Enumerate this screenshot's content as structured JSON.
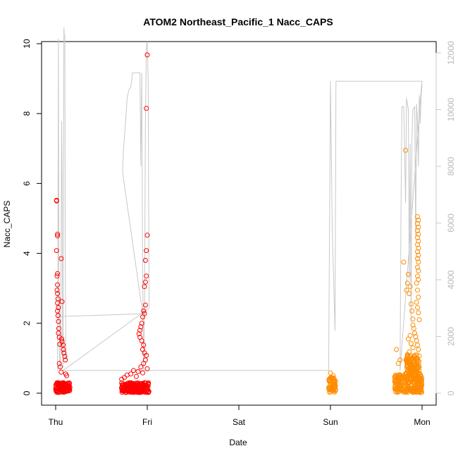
{
  "chart_data": {
    "type": "scatter",
    "title": "ATOM2 Northeast_Pacific_1 Nacc_CAPS",
    "xlabel": "Date",
    "ylabel": "Nacc_CAPS",
    "x_ticks": [
      "Thu",
      "Fri",
      "Sat",
      "Sun",
      "Mon"
    ],
    "x_range_days": [
      -0.05,
      4.05
    ],
    "y_left": {
      "range": [
        0,
        10
      ],
      "ticks": [
        "0",
        "2",
        "4",
        "6",
        "8",
        "10"
      ]
    },
    "y_right": {
      "range": [
        0,
        12000
      ],
      "ticks": [
        "0",
        "2000",
        "4000",
        "6000",
        "8000",
        "10000",
        "12000"
      ],
      "color": "#c8c8c8"
    },
    "grid": false,
    "legend": "none",
    "colors": {
      "series1": "#ff0000",
      "series2": "#ff8c00",
      "altitude": "#c8c8c8"
    },
    "series": [
      {
        "color": "#ff0000",
        "points": [
          [
            0.01,
            5.52
          ],
          [
            0.01,
            5.5
          ],
          [
            0.02,
            4.55
          ],
          [
            0.02,
            4.5
          ],
          [
            0.01,
            4.08
          ],
          [
            0.02,
            3.42
          ],
          [
            0.015,
            3.35
          ],
          [
            0.02,
            3.1
          ],
          [
            0.015,
            2.95
          ],
          [
            0.02,
            2.85
          ],
          [
            0.025,
            2.7
          ],
          [
            0.02,
            2.58
          ],
          [
            0.03,
            2.45
          ],
          [
            0.02,
            2.35
          ],
          [
            0.025,
            2.22
          ],
          [
            0.03,
            2.05
          ],
          [
            0.035,
            1.85
          ],
          [
            0.03,
            1.72
          ],
          [
            0.04,
            1.6
          ],
          [
            0.045,
            1.4
          ],
          [
            0.06,
            3.85
          ],
          [
            0.065,
            1.55
          ],
          [
            0.07,
            1.48
          ],
          [
            0.08,
            1.38
          ],
          [
            0.085,
            1.25
          ],
          [
            0.09,
            1.15
          ],
          [
            0.1,
            1.05
          ],
          [
            0.07,
            2.62
          ],
          [
            0.105,
            0.95
          ],
          [
            0.11,
            0.55
          ],
          [
            0.12,
            0.5
          ],
          [
            0.04,
            0.85
          ],
          [
            0.05,
            0.75
          ],
          [
            0.06,
            0.6
          ],
          [
            1.0,
            9.68
          ],
          [
            0.99,
            8.15
          ],
          [
            1.0,
            4.52
          ],
          [
            0.99,
            4.08
          ],
          [
            0.98,
            3.8
          ],
          [
            0.99,
            3.35
          ],
          [
            0.98,
            3.18
          ],
          [
            0.97,
            3.05
          ],
          [
            0.98,
            2.52
          ],
          [
            0.96,
            2.35
          ],
          [
            0.97,
            2.28
          ],
          [
            0.95,
            2.18
          ],
          [
            0.94,
            2.0
          ],
          [
            0.93,
            1.9
          ],
          [
            0.92,
            1.8
          ],
          [
            0.91,
            1.7
          ],
          [
            0.92,
            1.6
          ],
          [
            0.94,
            1.5
          ],
          [
            0.96,
            1.38
          ],
          [
            0.95,
            1.25
          ],
          [
            0.97,
            1.15
          ],
          [
            0.99,
            1.08
          ],
          [
            0.98,
            0.95
          ],
          [
            0.96,
            0.85
          ],
          [
            0.93,
            0.75
          ],
          [
            0.85,
            0.65
          ],
          [
            0.82,
            0.55
          ],
          [
            0.78,
            0.52
          ],
          [
            0.75,
            0.45
          ],
          [
            0.72,
            0.4
          ],
          [
            0.88,
            0.48
          ],
          [
            0.9,
            0.62
          ],
          [
            1.0,
            0.7
          ],
          [
            0.95,
            0.58
          ]
        ],
        "dense_band": [
          {
            "x0": 0.0,
            "x1": 0.16,
            "y0": 0.02,
            "y1": 0.3
          },
          {
            "x0": 0.72,
            "x1": 1.02,
            "y0": 0.02,
            "y1": 0.3
          }
        ]
      },
      {
        "color": "#ff8c00",
        "points": [
          [
            3.0,
            0.58
          ],
          [
            3.01,
            0.45
          ],
          [
            3.02,
            0.4
          ],
          [
            3.0,
            0.35
          ],
          [
            3.03,
            0.5
          ],
          [
            3.72,
            1.25
          ],
          [
            3.74,
            0.85
          ],
          [
            3.76,
            0.95
          ],
          [
            3.8,
            3.75
          ],
          [
            3.82,
            6.95
          ],
          [
            3.83,
            2.95
          ],
          [
            3.84,
            3.15
          ],
          [
            3.85,
            3.4
          ],
          [
            3.86,
            2.85
          ],
          [
            3.87,
            3.05
          ],
          [
            3.88,
            2.55
          ],
          [
            3.89,
            2.35
          ],
          [
            3.9,
            2.12
          ],
          [
            3.9,
            1.95
          ],
          [
            3.91,
            1.85
          ],
          [
            3.92,
            1.72
          ],
          [
            3.93,
            1.62
          ],
          [
            3.94,
            1.5
          ],
          [
            3.95,
            1.38
          ],
          [
            3.96,
            1.25
          ],
          [
            3.88,
            1.42
          ],
          [
            3.9,
            1.3
          ],
          [
            3.84,
            1.1
          ],
          [
            3.86,
            1.18
          ],
          [
            3.92,
            1.05
          ],
          [
            3.94,
            1.0
          ],
          [
            3.85,
            1.55
          ],
          [
            3.87,
            1.65
          ],
          [
            3.95,
            5.05
          ],
          [
            3.96,
            4.95
          ],
          [
            3.95,
            4.85
          ],
          [
            3.96,
            4.75
          ],
          [
            3.95,
            4.65
          ],
          [
            3.96,
            4.55
          ],
          [
            3.95,
            4.45
          ],
          [
            3.96,
            4.35
          ],
          [
            3.95,
            4.25
          ],
          [
            3.96,
            4.15
          ],
          [
            3.95,
            4.05
          ],
          [
            3.96,
            3.95
          ],
          [
            3.95,
            3.85
          ],
          [
            3.96,
            3.75
          ],
          [
            3.95,
            3.6
          ],
          [
            3.96,
            3.5
          ],
          [
            3.95,
            3.35
          ],
          [
            3.96,
            3.25
          ],
          [
            3.94,
            3.15
          ],
          [
            3.95,
            2.95
          ],
          [
            3.96,
            2.75
          ],
          [
            3.94,
            2.6
          ],
          [
            3.95,
            2.45
          ],
          [
            3.96,
            2.3
          ],
          [
            3.97,
            2.1
          ]
        ],
        "dense_band": [
          {
            "x0": 2.98,
            "x1": 3.06,
            "y0": 0.02,
            "y1": 0.45
          },
          {
            "x0": 3.7,
            "x1": 4.0,
            "y0": 0.02,
            "y1": 0.55
          },
          {
            "x0": 3.82,
            "x1": 3.97,
            "y0": 0.55,
            "y1": 1.1
          }
        ]
      }
    ],
    "altitude_line": {
      "axis": "right",
      "color": "#c8c8c8",
      "points": [
        [
          0.02,
          800
        ],
        [
          0.025,
          6000
        ],
        [
          0.03,
          12500
        ],
        [
          0.035,
          4000
        ],
        [
          0.04,
          1500
        ],
        [
          0.05,
          800
        ],
        [
          0.055,
          2200
        ],
        [
          0.06,
          5500
        ],
        [
          0.065,
          9600
        ],
        [
          0.07,
          7800
        ],
        [
          0.075,
          1800
        ],
        [
          0.08,
          900
        ],
        [
          0.085,
          4800
        ],
        [
          0.09,
          12900
        ],
        [
          0.095,
          12600
        ],
        [
          0.1,
          12600
        ],
        [
          0.105,
          5000
        ],
        [
          0.11,
          1800
        ],
        [
          0.115,
          1200
        ],
        [
          0.03,
          2700
        ],
        [
          0.95,
          2800
        ],
        [
          0.73,
          7800
        ],
        [
          0.74,
          8600
        ],
        [
          0.76,
          9400
        ],
        [
          0.78,
          10400
        ],
        [
          0.8,
          10700
        ],
        [
          0.82,
          10800
        ],
        [
          0.84,
          11300
        ],
        [
          0.9,
          11300
        ],
        [
          0.92,
          11300
        ],
        [
          0.93,
          8000
        ],
        [
          0.94,
          11300
        ],
        [
          0.95,
          4000
        ],
        [
          0.96,
          800
        ],
        [
          0.97,
          3000
        ],
        [
          0.98,
          9600
        ],
        [
          0.99,
          12200
        ],
        [
          1.0,
          12400
        ],
        [
          1.01,
          11000
        ],
        [
          1.02,
          3000
        ],
        [
          0.08,
          800
        ],
        [
          2.98,
          800
        ],
        [
          3.0,
          11000
        ],
        [
          3.02,
          5700
        ],
        [
          3.05,
          2200
        ],
        [
          3.06,
          11000
        ],
        [
          4.0,
          11000
        ],
        [
          3.99,
          10700
        ],
        [
          3.76,
          800
        ],
        [
          3.77,
          6500
        ],
        [
          3.78,
          10100
        ],
        [
          3.8,
          10100
        ],
        [
          3.82,
          6700
        ],
        [
          3.83,
          10400
        ],
        [
          3.85,
          10000
        ],
        [
          3.86,
          4000
        ],
        [
          3.87,
          8800
        ],
        [
          3.88,
          2500
        ],
        [
          3.89,
          9000
        ],
        [
          3.9,
          10000
        ],
        [
          3.92,
          10100
        ],
        [
          3.93,
          5500
        ],
        [
          3.94,
          10200
        ],
        [
          3.95,
          9600
        ],
        [
          3.96,
          8000
        ],
        [
          3.97,
          10500
        ],
        [
          3.98,
          9500
        ],
        [
          3.99,
          10500
        ],
        [
          4.0,
          10900
        ]
      ]
    }
  }
}
